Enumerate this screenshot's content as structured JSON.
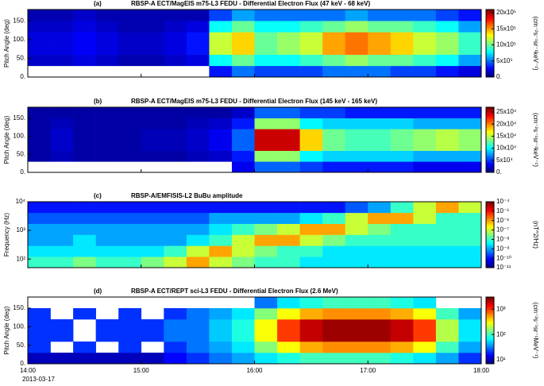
{
  "chart_data": [
    {
      "type": "heatmap",
      "label": "(a)",
      "title": "RBSP-A ECT/MagEIS m75-L3  FEDU - Differential Electron Flux  (47 keV - 68 keV)",
      "ylabel": "Pitch Angle (deg)",
      "xlim": [
        14,
        18
      ],
      "xbins": [
        14,
        14.2,
        14.4,
        14.6,
        14.8,
        15,
        15.2,
        15.4,
        15.6,
        15.8,
        16,
        16.2,
        16.4,
        16.6,
        16.8,
        17,
        17.2,
        17.4,
        17.6,
        17.8,
        18
      ],
      "ylim": [
        0,
        180
      ],
      "ybins": [
        0,
        30,
        60,
        90,
        120,
        150,
        180
      ],
      "y_log": false,
      "yticks": [
        {
          "value": 0,
          "label": "0."
        },
        {
          "value": 50,
          "label": "50."
        },
        {
          "value": 100,
          "label": "100."
        },
        {
          "value": 150,
          "label": "150."
        }
      ],
      "z": [
        [
          null,
          null,
          null,
          null,
          null,
          null,
          null,
          null,
          300000,
          500000,
          400000,
          400000,
          400000,
          500000,
          500000,
          500000,
          400000,
          400000,
          300000,
          200000
        ],
        [
          150000,
          150000,
          200000,
          150000,
          100000,
          100000,
          150000,
          200000,
          800000,
          1000000,
          800000,
          800000,
          900000,
          1000000,
          1100000,
          1000000,
          1000000,
          900000,
          800000,
          600000
        ],
        [
          200000,
          200000,
          250000,
          200000,
          150000,
          150000,
          200000,
          300000,
          1200000,
          1400000,
          1000000,
          1100000,
          1200000,
          1500000,
          1600000,
          1500000,
          1400000,
          1200000,
          1100000,
          900000
        ],
        [
          200000,
          200000,
          250000,
          200000,
          150000,
          150000,
          200000,
          300000,
          1200000,
          1400000,
          1000000,
          1100000,
          1200000,
          1500000,
          1600000,
          1500000,
          1400000,
          1200000,
          1100000,
          900000
        ],
        [
          150000,
          150000,
          200000,
          150000,
          100000,
          100000,
          150000,
          200000,
          800000,
          1000000,
          800000,
          800000,
          900000,
          1000000,
          1100000,
          1000000,
          1000000,
          900000,
          800000,
          600000
        ],
        [
          100000,
          100000,
          150000,
          100000,
          100000,
          100000,
          100000,
          100000,
          400000,
          600000,
          500000,
          500000,
          500000,
          500000,
          600000,
          500000,
          500000,
          500000,
          400000,
          300000
        ]
      ],
      "clim": [
        0,
        2100000
      ],
      "c_log": false,
      "cticks": [
        {
          "value": 0,
          "label": "0."
        },
        {
          "value": 500000,
          "label": "5x10⁵"
        },
        {
          "value": 1000000,
          "label": "10x10⁵"
        },
        {
          "value": 1500000,
          "label": "15x10⁵"
        },
        {
          "value": 2000000,
          "label": "20x10⁵"
        }
      ],
      "clabel": "(cm⁻²s⁻¹sr⁻¹keV⁻¹)"
    },
    {
      "type": "heatmap",
      "label": "(b)",
      "title": "RBSP-A ECT/MagEIS m75-L3  FEDU - Differential Electron Flux  (145 keV - 165 keV)",
      "ylabel": "Pitch Angle (deg)",
      "xlim": [
        14,
        18
      ],
      "xbins": [
        14,
        14.2,
        14.4,
        14.6,
        14.8,
        15,
        15.2,
        15.4,
        15.6,
        15.8,
        16,
        16.2,
        16.4,
        16.6,
        16.8,
        17,
        17.2,
        17.4,
        17.6,
        17.8,
        18
      ],
      "ylim": [
        0,
        180
      ],
      "ybins": [
        0,
        30,
        60,
        90,
        120,
        150,
        180
      ],
      "y_log": false,
      "yticks": [
        {
          "value": 0,
          "label": "0."
        },
        {
          "value": 50,
          "label": "50."
        },
        {
          "value": 100,
          "label": "100."
        },
        {
          "value": 150,
          "label": "150."
        }
      ],
      "z": [
        [
          null,
          null,
          null,
          null,
          null,
          null,
          null,
          null,
          null,
          30000,
          60000,
          60000,
          50000,
          40000,
          40000,
          40000,
          40000,
          30000,
          30000,
          30000
        ],
        [
          10000,
          15000,
          10000,
          10000,
          10000,
          10000,
          10000,
          15000,
          20000,
          40000,
          140000,
          140000,
          100000,
          90000,
          90000,
          90000,
          90000,
          80000,
          80000,
          80000
        ],
        [
          10000,
          20000,
          10000,
          10000,
          10000,
          15000,
          15000,
          20000,
          30000,
          60000,
          250000,
          250000,
          180000,
          130000,
          120000,
          120000,
          130000,
          140000,
          150000,
          140000
        ],
        [
          10000,
          20000,
          10000,
          10000,
          10000,
          15000,
          15000,
          20000,
          30000,
          60000,
          250000,
          250000,
          180000,
          130000,
          120000,
          120000,
          130000,
          140000,
          150000,
          140000
        ],
        [
          10000,
          15000,
          10000,
          10000,
          10000,
          10000,
          10000,
          15000,
          20000,
          40000,
          140000,
          140000,
          100000,
          90000,
          90000,
          90000,
          90000,
          80000,
          80000,
          80000
        ],
        [
          10000,
          10000,
          10000,
          10000,
          10000,
          10000,
          10000,
          10000,
          10000,
          20000,
          60000,
          60000,
          50000,
          50000,
          40000,
          40000,
          40000,
          40000,
          40000,
          40000
        ]
      ],
      "clim": [
        0,
        270000
      ],
      "c_log": false,
      "cticks": [
        {
          "value": 0,
          "label": "0."
        },
        {
          "value": 50000,
          "label": "5x10⁴"
        },
        {
          "value": 100000,
          "label": "10x10⁴"
        },
        {
          "value": 150000,
          "label": "15x10⁴"
        },
        {
          "value": 200000,
          "label": "20x10⁴"
        },
        {
          "value": 250000,
          "label": "25x10⁴"
        }
      ],
      "clabel": "(cm⁻²s⁻¹sr⁻¹keV⁻¹)"
    },
    {
      "type": "heatmap",
      "label": "(c)",
      "title": "RBSP-A/EMFISIS-L2  BuBu amplitude",
      "ylabel": "Frequency (Hz)",
      "xlim": [
        14,
        18
      ],
      "xbins": [
        14,
        14.2,
        14.4,
        14.6,
        14.8,
        15,
        15.2,
        15.4,
        15.6,
        15.8,
        16,
        16.2,
        16.4,
        16.6,
        16.8,
        17,
        17.2,
        17.4,
        17.6,
        17.8,
        18
      ],
      "ylim": [
        50,
        10000
      ],
      "ybins": [
        50,
        121,
        292,
        707,
        1710,
        4140,
        10000
      ],
      "y_log": true,
      "yticks": [
        {
          "value": 100,
          "label": "10²"
        },
        {
          "value": 1000,
          "label": "10³"
        },
        {
          "value": 10000,
          "label": "10⁴"
        }
      ],
      "z": [
        [
          1e-08,
          1e-08,
          3e-08,
          1e-08,
          1e-08,
          3e-08,
          1e-07,
          1e-06,
          1e-07,
          3e-08,
          1e-08,
          1e-08,
          3e-09,
          3e-09,
          3e-09,
          3e-09,
          3e-09,
          3e-09,
          3e-09,
          3e-09
        ],
        [
          3e-09,
          3e-09,
          3e-09,
          3e-09,
          3e-09,
          3e-09,
          1e-08,
          1e-07,
          1e-06,
          1e-07,
          3e-08,
          1e-08,
          1e-08,
          3e-09,
          3e-09,
          3e-09,
          3e-09,
          3e-09,
          3e-09,
          3e-09
        ],
        [
          1e-09,
          1e-09,
          3e-09,
          1e-09,
          1e-09,
          1e-09,
          1e-09,
          3e-09,
          1e-08,
          1e-07,
          1e-06,
          1e-06,
          1e-07,
          3e-08,
          1e-08,
          1e-08,
          1e-08,
          1e-08,
          1e-08,
          1e-08
        ],
        [
          1e-09,
          1e-09,
          1e-09,
          1e-09,
          1e-09,
          1e-09,
          1e-09,
          1e-09,
          3e-09,
          1e-08,
          3e-08,
          1e-07,
          1e-06,
          1e-06,
          1e-07,
          3e-08,
          1e-08,
          1e-08,
          1e-08,
          1e-08
        ],
        [
          3e-10,
          3e-10,
          3e-10,
          3e-10,
          3e-10,
          3e-10,
          3e-10,
          3e-10,
          1e-09,
          1e-09,
          1e-09,
          1e-09,
          3e-09,
          1e-08,
          1e-07,
          1e-06,
          1e-06,
          1e-07,
          1e-08,
          1e-08
        ],
        [
          1e-10,
          1e-10,
          1e-10,
          1e-10,
          1e-10,
          1e-10,
          1e-10,
          1e-10,
          1e-10,
          1e-10,
          1e-10,
          1e-10,
          1e-10,
          1e-10,
          3e-10,
          1e-09,
          1e-08,
          1e-07,
          1e-06,
          1e-07
        ]
      ],
      "clim": [
        1e-11,
        0.0001
      ],
      "c_log": true,
      "cticks": [
        {
          "value": 0.0001,
          "label": "10⁻⁴"
        },
        {
          "value": 1e-05,
          "label": "10⁻⁵"
        },
        {
          "value": 1e-06,
          "label": "10⁻⁶"
        },
        {
          "value": 1e-07,
          "label": "10⁻⁷"
        },
        {
          "value": 1e-08,
          "label": "10⁻⁸"
        },
        {
          "value": 1e-09,
          "label": "10⁻⁹"
        },
        {
          "value": 1e-10,
          "label": "10⁻¹⁰"
        },
        {
          "value": 1e-11,
          "label": "10⁻¹¹"
        }
      ],
      "clabel": "(nT^2/Hz)"
    },
    {
      "type": "heatmap",
      "label": "(d)",
      "title": "RBSP-A ECT/REPT sci-L3  FEDU - Differential Electron Flux  (2.6 MeV)",
      "ylabel": "Pitch Angle (deg)",
      "xlim": [
        14,
        18
      ],
      "xbins": [
        14,
        14.2,
        14.4,
        14.6,
        14.8,
        15,
        15.2,
        15.4,
        15.6,
        15.8,
        16,
        16.2,
        16.4,
        16.6,
        16.8,
        17,
        17.2,
        17.4,
        17.6,
        17.8,
        18
      ],
      "xticks": [
        {
          "value": 14,
          "label": "14:00"
        },
        {
          "value": 15,
          "label": "15:00"
        },
        {
          "value": 16,
          "label": "16:00"
        },
        {
          "value": 17,
          "label": "17:00"
        },
        {
          "value": 18,
          "label": "18:00"
        }
      ],
      "date": "2013-03-17",
      "ylim": [
        0,
        180
      ],
      "ybins": [
        0,
        30,
        60,
        90,
        120,
        150,
        180
      ],
      "y_log": false,
      "yticks": [
        {
          "value": 0,
          "label": "0."
        },
        {
          "value": 50,
          "label": "50."
        },
        {
          "value": 100,
          "label": "100."
        },
        {
          "value": 150,
          "label": "150."
        }
      ],
      "z": [
        [
          10,
          10,
          10,
          10,
          10,
          10,
          15,
          20,
          30,
          40,
          60,
          80,
          100,
          100,
          100,
          100,
          80,
          60,
          40,
          20
        ],
        [
          20,
          null,
          20,
          null,
          20,
          null,
          20,
          30,
          40,
          60,
          150,
          300,
          500,
          600,
          600,
          600,
          500,
          300,
          100,
          40
        ],
        [
          20,
          20,
          null,
          20,
          20,
          20,
          30,
          30,
          50,
          80,
          300,
          1000,
          2000,
          2500,
          2500,
          2500,
          2000,
          1000,
          200,
          60
        ],
        [
          20,
          20,
          null,
          20,
          20,
          20,
          30,
          30,
          50,
          80,
          300,
          1000,
          2000,
          2500,
          2500,
          2500,
          2000,
          1000,
          200,
          60
        ],
        [
          20,
          null,
          20,
          null,
          20,
          null,
          20,
          30,
          40,
          60,
          150,
          300,
          500,
          600,
          600,
          600,
          500,
          300,
          100,
          40
        ],
        [
          null,
          null,
          null,
          null,
          null,
          null,
          null,
          null,
          null,
          null,
          30,
          60,
          80,
          100,
          100,
          100,
          80,
          60,
          null,
          null
        ]
      ],
      "clim": [
        7,
        3000
      ],
      "c_log": true,
      "cticks": [
        {
          "value": 10,
          "label": "10¹"
        },
        {
          "value": 100,
          "label": "10²"
        },
        {
          "value": 1000,
          "label": "10³"
        }
      ],
      "clabel": "(cm⁻²s⁻¹sr⁻¹MeV⁻¹)"
    }
  ]
}
